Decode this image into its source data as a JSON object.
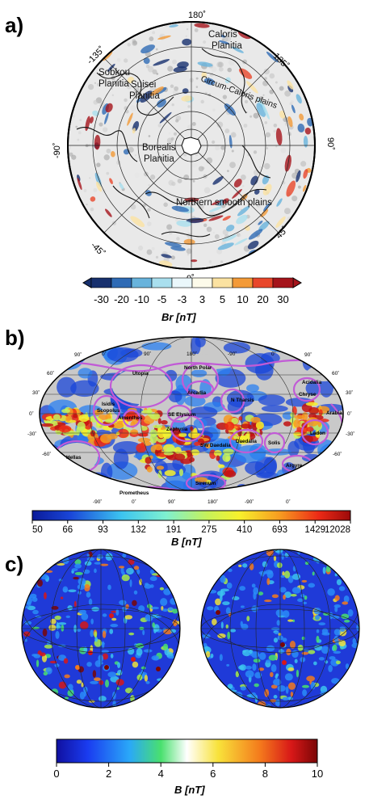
{
  "panels": {
    "a": {
      "letter": "a)",
      "lon_labels": [
        "180˚",
        "135˚",
        "90˚",
        "45˚",
        "0˚",
        "-45˚",
        "-90˚",
        "-135˚"
      ],
      "region_labels": [
        "Caloris",
        "Planitia",
        "Circum-Caloris plains",
        "Sobkou",
        "Planitia",
        "Suisei",
        "Planitia",
        "Borealis",
        "Planitia",
        "Northern smooth plains"
      ],
      "colorbar_ticks": [
        "-30",
        "-20",
        "-10",
        "-5",
        "-3",
        "3",
        "5",
        "10",
        "20",
        "30"
      ],
      "colorbar_colors": [
        "#17306e",
        "#2f6bb5",
        "#68b3dc",
        "#a9dfee",
        "#eaf7fb",
        "#fdfbea",
        "#fbe2a1",
        "#f39a37",
        "#e8462a",
        "#a5141b"
      ],
      "colorbar_label": "Br [nT]"
    },
    "b": {
      "letter": "b)",
      "top_lon_labels": [
        "0˚",
        "90˚",
        "180˚",
        "-90˚",
        "0˚"
      ],
      "bottom_lon_labels": [
        "-90˚",
        "0˚",
        "90˚",
        "180˚",
        "-90˚",
        "0˚"
      ],
      "left_lat_labels": [
        "90˚",
        "60˚",
        "30˚",
        "0˚",
        "-30˚",
        "-60˚"
      ],
      "right_lat_labels": [
        "90˚",
        "60˚",
        "30˚",
        "0˚",
        "-30˚",
        "-60˚"
      ],
      "region_labels": [
        "North Polar",
        "Acidalia",
        "Utopia",
        "Chryse",
        "Isidis",
        "Scopolus",
        "Amenthes",
        "Arcadia",
        "N Tharsis",
        "SE Elysium",
        "Zephyria",
        "SW Daedalia",
        "Daedalia",
        "Solis",
        "Argyre",
        "Ladon",
        "Hellas",
        "Sirenum",
        "Prometheus",
        "Arabia"
      ],
      "colorbar_ticks": [
        "50",
        "66",
        "93",
        "132",
        "191",
        "275",
        "410",
        "693",
        "1429",
        "12028"
      ],
      "colorbar_label": "B [nT]"
    },
    "c": {
      "letter": "c)",
      "colorbar_ticks": [
        "0",
        "2",
        "4",
        "6",
        "8",
        "10"
      ],
      "colorbar_label": "B [nT]"
    }
  },
  "chart_data": [
    {
      "type": "heatmap",
      "projection": "polar stereographic",
      "title": "",
      "quantity": "Br [nT]",
      "color_scale": [
        -30,
        -20,
        -10,
        -5,
        -3,
        3,
        5,
        10,
        20,
        30
      ]
    },
    {
      "type": "heatmap",
      "projection": "Mollweide",
      "title": "",
      "quantity": "B [nT]",
      "color_scale": [
        50,
        66,
        93,
        132,
        191,
        275,
        410,
        693,
        1429,
        12028
      ]
    },
    {
      "type": "heatmap",
      "projection": "orthographic (two hemispheres)",
      "title": "",
      "quantity": "B [nT]",
      "color_scale": [
        0,
        10
      ]
    }
  ]
}
